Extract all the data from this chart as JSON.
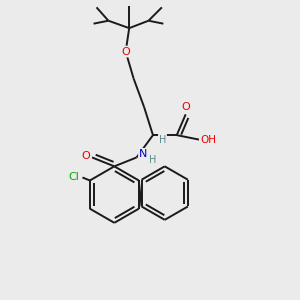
{
  "background_color": "#ebebeb",
  "bond_color": "#1a1a1a",
  "atom_colors": {
    "O": "#ee0000",
    "N": "#0000cc",
    "Cl": "#00aa00",
    "C": "#1a1a1a",
    "H": "#5a8a8a"
  },
  "figsize": [
    3.0,
    3.0
  ],
  "dpi": 100
}
